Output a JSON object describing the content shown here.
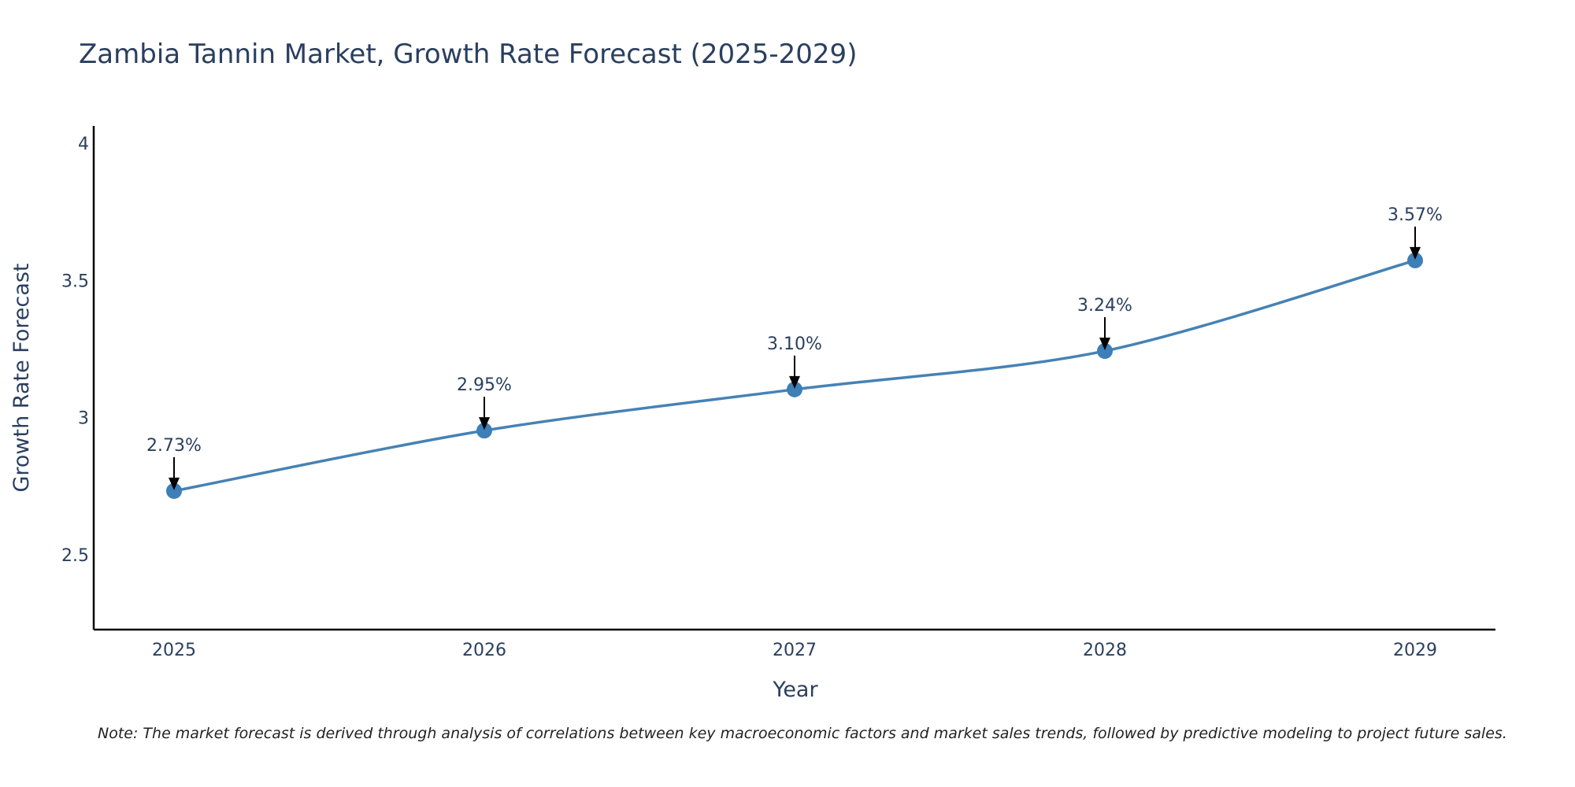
{
  "chart_data": {
    "type": "line",
    "title": "Zambia Tannin Market, Growth Rate Forecast (2025-2029)",
    "xlabel": "Year",
    "ylabel": "Growth Rate Forecast",
    "categories": [
      "2025",
      "2026",
      "2027",
      "2028",
      "2029"
    ],
    "values": [
      2.73,
      2.95,
      3.1,
      3.24,
      3.57
    ],
    "data_labels": [
      "2.73%",
      "2.95%",
      "3.10%",
      "3.24%",
      "3.57%"
    ],
    "ylim": [
      2.225,
      4.06
    ],
    "yticks": [
      2.5,
      3,
      3.5,
      4
    ],
    "ytick_labels": [
      "2.5",
      "3",
      "3.5",
      "4"
    ],
    "grid": false,
    "legend": "none",
    "colors": {
      "line": "#4682b4",
      "marker": "#3d7fb6",
      "text": "#2a3f5f",
      "axis": "#000000",
      "arrow": "#000000"
    }
  },
  "note": "Note: The market forecast is derived through analysis of correlations between key macroeconomic factors and market sales trends, followed by predictive modeling to project future sales."
}
